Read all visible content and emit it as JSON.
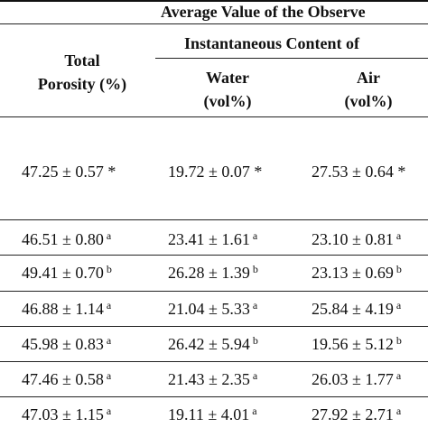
{
  "header": {
    "group_title": "Average Value of the Observe",
    "subgroup_title": "Instantaneous Content of",
    "col_total": [
      "Total",
      "Porosity (%)"
    ],
    "col_water": [
      "Water",
      "(vol%)"
    ],
    "col_air": [
      "Air",
      "(vol%)"
    ]
  },
  "rows": [
    {
      "total": "47.25 ± 0.57 *",
      "water": "19.72 ± 0.07 *",
      "air": "27.53 ± 0.64 *"
    },
    {
      "total": "46.51 ± 0.80",
      "total_sup": "a",
      "water": "23.41 ± 1.61",
      "water_sup": "a",
      "air": "23.10 ± 0.81",
      "air_sup": "a"
    },
    {
      "total": "49.41 ± 0.70",
      "total_sup": "b",
      "water": "26.28 ± 1.39",
      "water_sup": "b",
      "air": "23.13 ± 0.69",
      "air_sup": "b"
    },
    {
      "total": "46.88 ± 1.14",
      "total_sup": "a",
      "water": "21.04 ± 5.33",
      "water_sup": "a",
      "air": "25.84 ± 4.19",
      "air_sup": "a"
    },
    {
      "total": "45.98 ± 0.83",
      "total_sup": "a",
      "water": "26.42 ± 5.94",
      "water_sup": "b",
      "air": "19.56 ± 5.12",
      "air_sup": "b"
    },
    {
      "total": "47.46 ± 0.58",
      "total_sup": "a",
      "water": "21.43 ± 2.35",
      "water_sup": "a",
      "air": "26.03 ± 1.77",
      "air_sup": "a"
    },
    {
      "total": "47.03 ± 1.15",
      "total_sup": "a",
      "water": "19.11 ± 4.01",
      "water_sup": "a",
      "air": "27.92 ± 2.71",
      "air_sup": "a"
    }
  ]
}
